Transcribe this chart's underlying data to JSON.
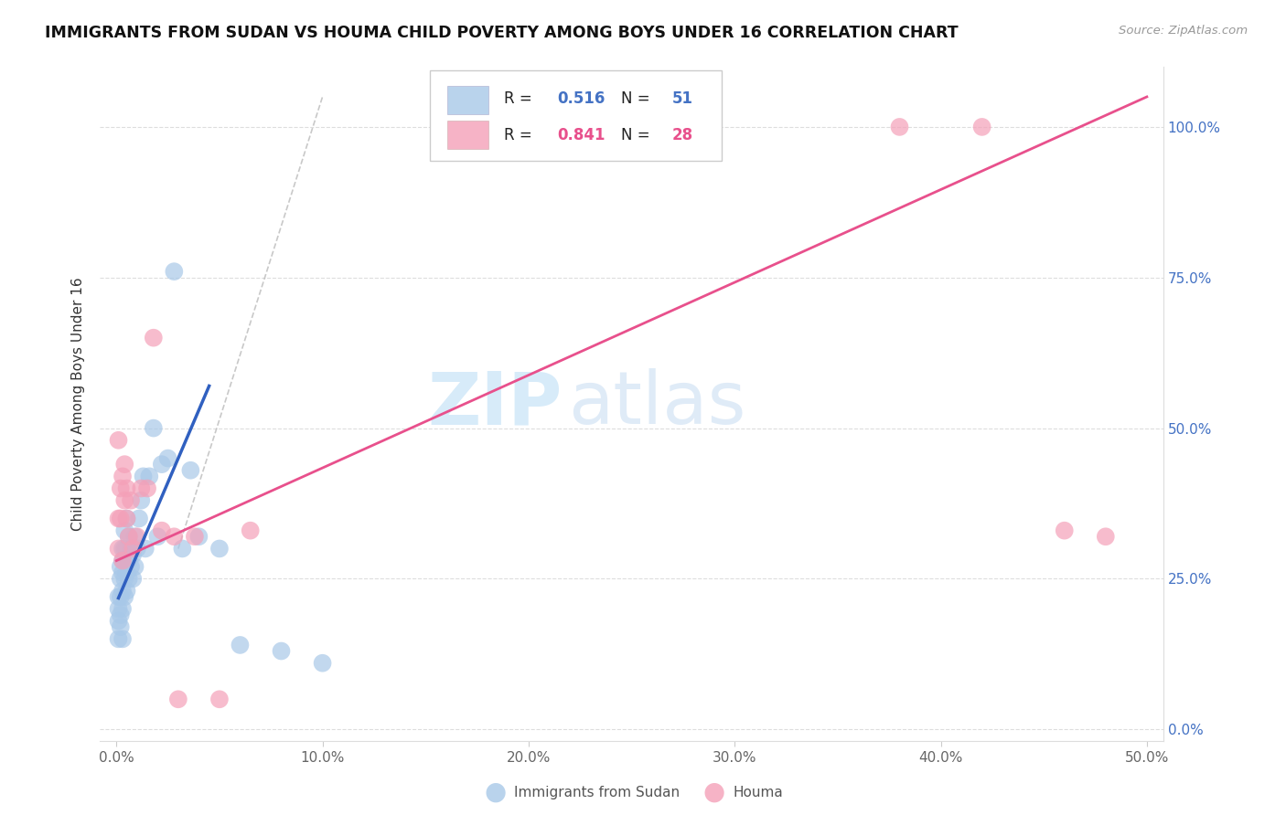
{
  "title": "IMMIGRANTS FROM SUDAN VS HOUMA CHILD POVERTY AMONG BOYS UNDER 16 CORRELATION CHART",
  "source": "Source: ZipAtlas.com",
  "ylabel_label": "Child Poverty Among Boys Under 16",
  "legend_label1": "Immigrants from Sudan",
  "legend_label2": "Houma",
  "R1": "0.516",
  "N1": "51",
  "R2": "0.841",
  "N2": "28",
  "color_blue": "#a8c8e8",
  "color_pink": "#f4a0b8",
  "color_blue_line": "#3060c0",
  "color_pink_line": "#e8508c",
  "color_dashed": "#bbbbbb",
  "watermark_zip": "ZIP",
  "watermark_atlas": "atlas",
  "xlim": [
    0.0,
    0.5
  ],
  "ylim": [
    0.0,
    1.05
  ],
  "blue_x": [
    0.001,
    0.001,
    0.001,
    0.001,
    0.002,
    0.002,
    0.002,
    0.002,
    0.002,
    0.003,
    0.003,
    0.003,
    0.003,
    0.003,
    0.003,
    0.004,
    0.004,
    0.004,
    0.004,
    0.004,
    0.005,
    0.005,
    0.005,
    0.005,
    0.006,
    0.006,
    0.006,
    0.007,
    0.007,
    0.008,
    0.008,
    0.009,
    0.009,
    0.01,
    0.011,
    0.012,
    0.013,
    0.014,
    0.016,
    0.018,
    0.02,
    0.022,
    0.025,
    0.028,
    0.032,
    0.036,
    0.04,
    0.05,
    0.06,
    0.08,
    0.1
  ],
  "blue_y": [
    0.18,
    0.2,
    0.22,
    0.15,
    0.17,
    0.19,
    0.22,
    0.25,
    0.27,
    0.2,
    0.23,
    0.26,
    0.28,
    0.3,
    0.15,
    0.22,
    0.25,
    0.28,
    0.3,
    0.33,
    0.23,
    0.26,
    0.3,
    0.35,
    0.25,
    0.28,
    0.32,
    0.27,
    0.3,
    0.25,
    0.29,
    0.27,
    0.32,
    0.3,
    0.35,
    0.38,
    0.42,
    0.3,
    0.42,
    0.5,
    0.32,
    0.44,
    0.45,
    0.76,
    0.3,
    0.43,
    0.32,
    0.3,
    0.14,
    0.13,
    0.11
  ],
  "pink_x": [
    0.001,
    0.001,
    0.001,
    0.002,
    0.002,
    0.003,
    0.003,
    0.004,
    0.004,
    0.005,
    0.005,
    0.006,
    0.007,
    0.008,
    0.01,
    0.012,
    0.015,
    0.018,
    0.022,
    0.028,
    0.03,
    0.038,
    0.05,
    0.065,
    0.38,
    0.42,
    0.46,
    0.48
  ],
  "pink_y": [
    0.48,
    0.35,
    0.3,
    0.4,
    0.35,
    0.42,
    0.28,
    0.38,
    0.44,
    0.4,
    0.35,
    0.32,
    0.38,
    0.3,
    0.32,
    0.4,
    0.4,
    0.65,
    0.33,
    0.32,
    0.05,
    0.32,
    0.05,
    0.33,
    1.0,
    1.0,
    0.33,
    0.32
  ],
  "blue_line_x": [
    0.001,
    0.045
  ],
  "blue_line_y_intercept": 0.21,
  "blue_line_slope": 8.0,
  "pink_line_x": [
    0.0,
    0.5
  ],
  "pink_line_y": [
    0.28,
    1.05
  ],
  "dash_line_x": [
    0.03,
    0.1
  ],
  "dash_line_y": [
    0.3,
    1.05
  ]
}
